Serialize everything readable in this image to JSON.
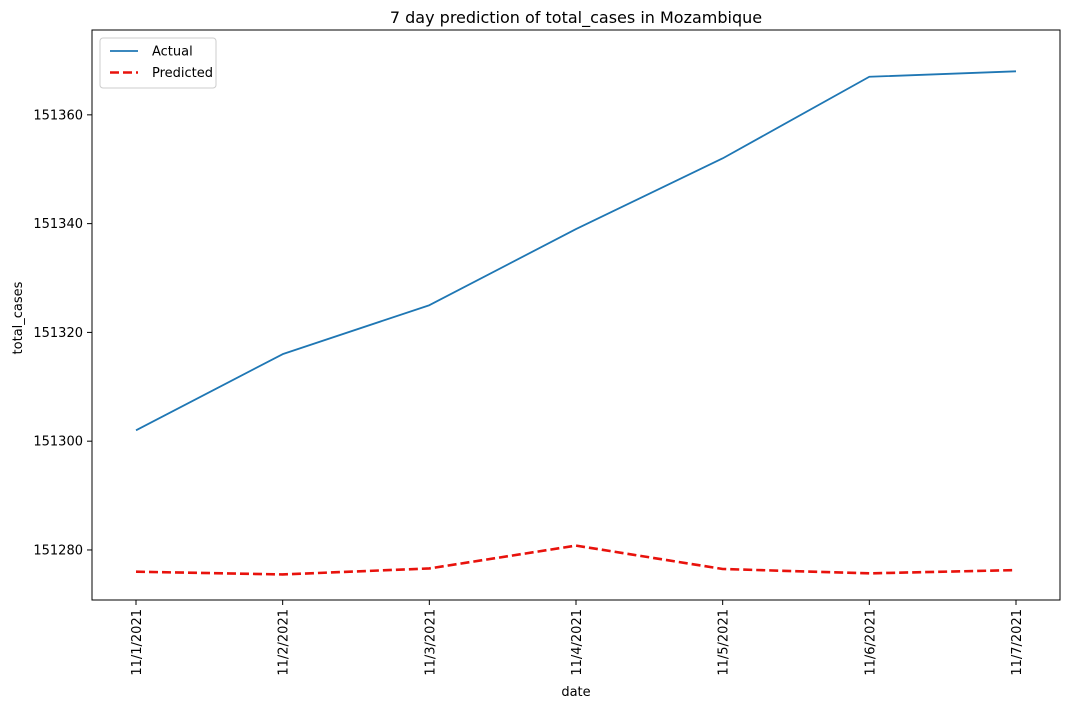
{
  "chart_data": {
    "type": "line",
    "title": "7 day prediction of total_cases in Mozambique",
    "xlabel": "date",
    "ylabel": "total_cases",
    "categories": [
      "11/1/2021",
      "11/2/2021",
      "11/3/2021",
      "11/4/2021",
      "11/5/2021",
      "11/6/2021",
      "11/7/2021"
    ],
    "ylim": [
      151270.8,
      151375.6
    ],
    "yticks": [
      151280,
      151300,
      151320,
      151340,
      151360
    ],
    "grid": false,
    "legend_position": "top-left",
    "series": [
      {
        "name": "Actual",
        "color": "#1f77b4",
        "style": "solid",
        "values": [
          151302,
          151316,
          151325,
          151339,
          151352,
          151367,
          151368
        ]
      },
      {
        "name": "Predicted",
        "color": "#e8120c",
        "style": "dashed",
        "values": [
          151276.0,
          151275.5,
          151276.6,
          151280.8,
          151276.5,
          151275.7,
          151276.3
        ]
      }
    ]
  }
}
